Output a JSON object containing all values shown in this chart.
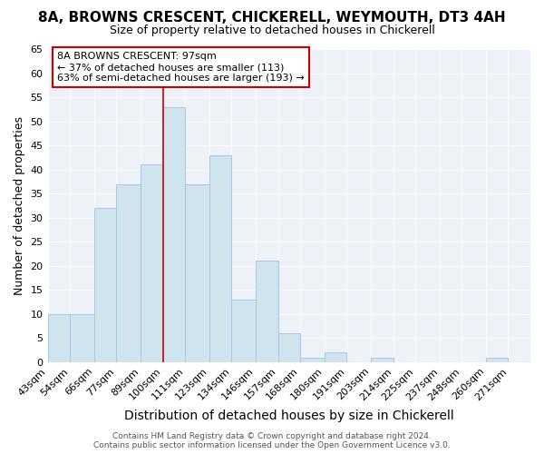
{
  "title1": "8A, BROWNS CRESCENT, CHICKERELL, WEYMOUTH, DT3 4AH",
  "title2": "Size of property relative to detached houses in Chickerell",
  "xlabel": "Distribution of detached houses by size in Chickerell",
  "ylabel": "Number of detached properties",
  "bar_color": "#d0e4f0",
  "bar_edge_color": "#a8c8e0",
  "categories": [
    "43sqm",
    "54sqm",
    "66sqm",
    "77sqm",
    "89sqm",
    "100sqm",
    "111sqm",
    "123sqm",
    "134sqm",
    "146sqm",
    "157sqm",
    "168sqm",
    "180sqm",
    "191sqm",
    "203sqm",
    "214sqm",
    "225sqm",
    "237sqm",
    "248sqm",
    "260sqm",
    "271sqm"
  ],
  "values": [
    10,
    10,
    32,
    37,
    41,
    53,
    37,
    43,
    13,
    21,
    6,
    1,
    2,
    0,
    1,
    0,
    0,
    0,
    0,
    1,
    0
  ],
  "bar_starts": [
    43,
    54,
    66,
    77,
    89,
    100,
    111,
    123,
    134,
    146,
    157,
    168,
    180,
    191,
    203,
    214,
    225,
    237,
    248,
    260,
    271
  ],
  "bar_edges": [
    54,
    66,
    77,
    89,
    100,
    111,
    123,
    134,
    146,
    157,
    168,
    180,
    191,
    203,
    214,
    225,
    237,
    248,
    260,
    271,
    282
  ],
  "property_line_x": 100,
  "ylim": [
    0,
    65
  ],
  "yticks": [
    0,
    5,
    10,
    15,
    20,
    25,
    30,
    35,
    40,
    45,
    50,
    55,
    60,
    65
  ],
  "annotation_box_text": "8A BROWNS CRESCENT: 97sqm\n← 37% of detached houses are smaller (113)\n63% of semi-detached houses are larger (193) →",
  "annotation_box_color": "#ffffff",
  "annotation_box_edge_color": "#cc0000",
  "property_line_color": "#cc0000",
  "footer_text": "Contains HM Land Registry data © Crown copyright and database right 2024.\nContains public sector information licensed under the Open Government Licence v3.0.",
  "background_color": "#ffffff",
  "plot_bg_color": "#eef2f8",
  "grid_color": "#ffffff",
  "title1_fontsize": 11,
  "title2_fontsize": 9,
  "xlabel_fontsize": 10,
  "ylabel_fontsize": 9,
  "tick_fontsize": 8,
  "footer_fontsize": 6.5
}
